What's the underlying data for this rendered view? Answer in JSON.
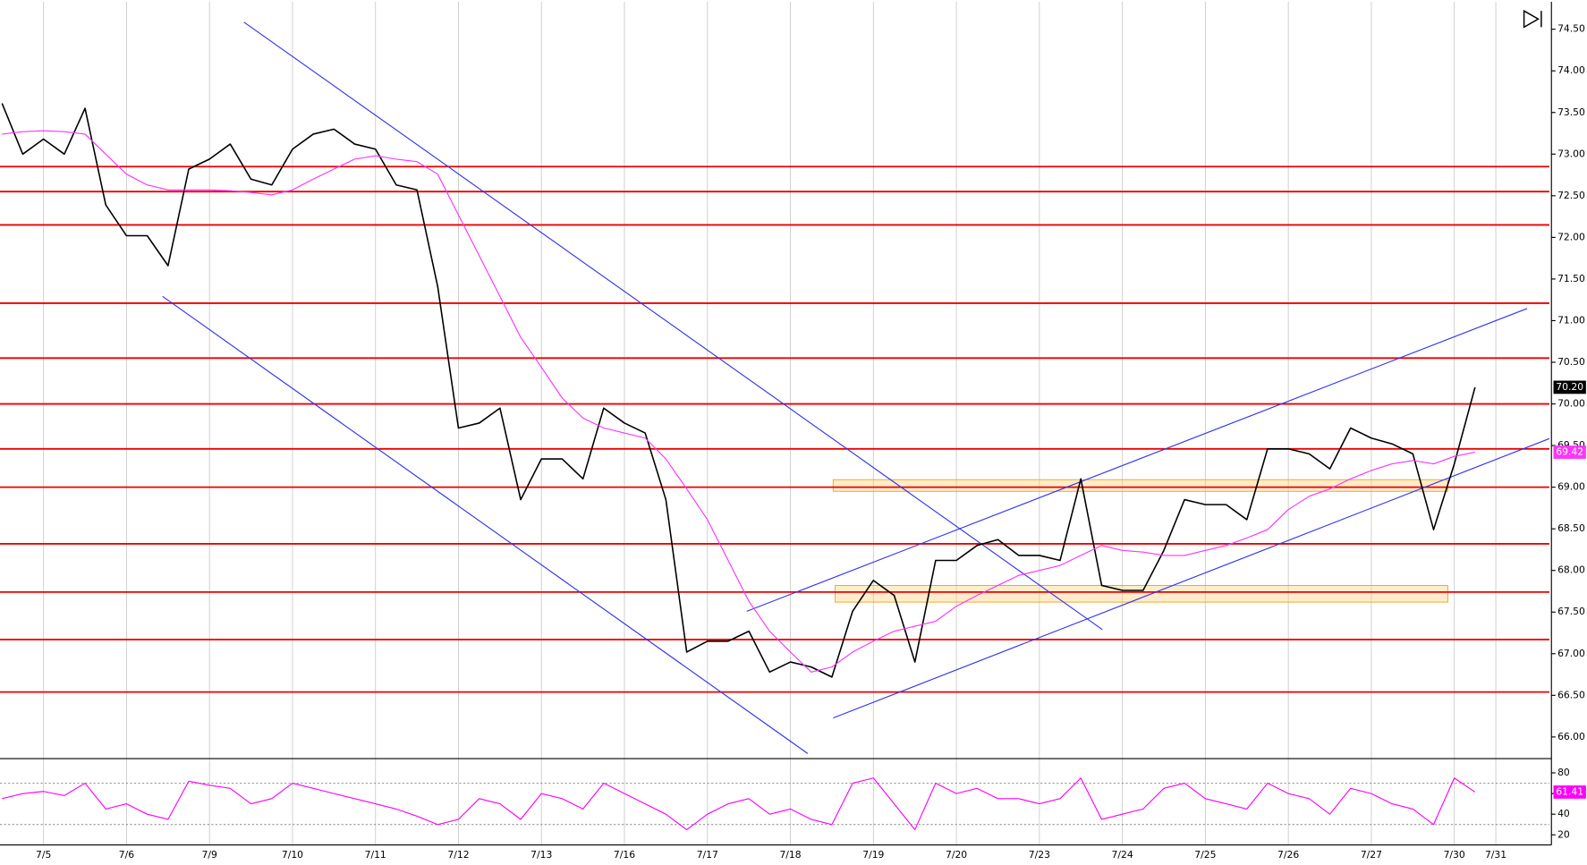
{
  "chart_data": [
    {
      "type": "line",
      "categories": [
        null,
        null,
        "7/5",
        null,
        null,
        null,
        "7/6",
        null,
        null,
        null,
        "7/9",
        null,
        null,
        null,
        "7/10",
        null,
        null,
        null,
        "7/11",
        null,
        null,
        null,
        "7/12",
        null,
        null,
        null,
        "7/13",
        null,
        null,
        null,
        "7/16",
        null,
        null,
        null,
        "7/17",
        null,
        null,
        null,
        "7/18",
        null,
        null,
        null,
        "7/19",
        null,
        null,
        null,
        "7/20",
        null,
        null,
        null,
        "7/23",
        null,
        null,
        null,
        "7/24",
        null,
        null,
        null,
        "7/25",
        null,
        null,
        null,
        "7/26",
        null,
        null,
        null,
        "7/27",
        null,
        null,
        null,
        "7/30",
        null,
        "7/31"
      ],
      "series": [
        {
          "color": "#000000",
          "values": [
            73.61,
            73.0,
            73.18,
            73.0,
            73.55,
            72.39,
            72.02,
            72.02,
            71.66,
            72.82,
            72.94,
            73.12,
            72.7,
            72.63,
            73.06,
            73.24,
            73.3,
            73.12,
            73.06,
            72.63,
            72.57,
            71.41,
            69.71,
            69.77,
            69.95,
            68.85,
            69.34,
            69.34,
            69.1,
            69.95,
            69.77,
            69.65,
            68.85,
            67.02,
            67.15,
            67.15,
            67.27,
            66.78,
            66.9,
            66.84,
            66.72,
            67.51,
            67.88,
            67.7,
            66.9,
            68.12,
            68.12,
            68.3,
            68.37,
            68.18,
            68.18,
            68.12,
            69.1,
            67.82,
            67.76,
            67.76,
            68.24,
            68.85,
            68.79,
            68.79,
            68.61,
            69.46,
            69.46,
            69.4,
            69.22,
            69.71,
            69.59,
            69.52,
            69.4,
            68.49,
            69.28,
            70.2,
            null
          ]
        },
        {
          "color": "#ff33ff",
          "values": [
            73.24,
            73.27,
            73.28,
            73.27,
            73.24,
            73.0,
            72.76,
            72.63,
            72.57,
            72.57,
            72.57,
            72.56,
            72.54,
            72.51,
            72.57,
            72.7,
            72.82,
            72.94,
            72.98,
            72.94,
            72.91,
            72.76,
            72.27,
            71.78,
            71.29,
            70.8,
            70.44,
            70.07,
            69.83,
            69.71,
            69.65,
            69.59,
            69.34,
            68.98,
            68.61,
            68.12,
            67.63,
            67.27,
            67.02,
            66.78,
            66.84,
            67.02,
            67.15,
            67.27,
            67.33,
            67.39,
            67.57,
            67.7,
            67.82,
            67.94,
            68.0,
            68.06,
            68.18,
            68.3,
            68.24,
            68.22,
            68.18,
            68.18,
            68.24,
            68.3,
            68.39,
            68.49,
            68.73,
            68.89,
            68.98,
            69.1,
            69.2,
            69.28,
            69.32,
            69.28,
            69.37,
            69.42,
            null
          ]
        }
      ],
      "ylim": [
        65.74,
        74.83
      ],
      "yticks": [
        {
          "value": 66,
          "label": "66.00"
        },
        {
          "value": 66.5,
          "label": "66.50"
        },
        {
          "value": 67,
          "label": "67.00"
        },
        {
          "value": 67.5,
          "label": "67.50"
        },
        {
          "value": 68,
          "label": "68.00"
        },
        {
          "value": 68.5,
          "label": "68.50"
        },
        {
          "value": 69,
          "label": "69.00"
        },
        {
          "value": 69.5,
          "label": "69.50"
        },
        {
          "value": 70,
          "label": "70.00"
        },
        {
          "value": 70.5,
          "label": "70.50"
        },
        {
          "value": 71,
          "label": "71.00"
        },
        {
          "value": 71.5,
          "label": "71.50"
        },
        {
          "value": 72,
          "label": "72.00"
        },
        {
          "value": 72.5,
          "label": "72.50"
        },
        {
          "value": 73,
          "label": "73.00"
        },
        {
          "value": 73.5,
          "label": "73.50"
        },
        {
          "value": 74,
          "label": "74.00"
        },
        {
          "value": 74.5,
          "label": "74.50"
        }
      ],
      "levels": {
        "color": "#ee0000",
        "values": [
          72.85,
          72.55,
          72.15,
          71.21,
          70.55,
          70.0,
          69.46,
          69.0,
          68.32,
          67.74,
          67.17,
          66.54
        ]
      },
      "zones": {
        "color": "#ffcc66",
        "ranges": [
          [
            68.95,
            69.09
          ],
          [
            67.62,
            67.82
          ]
        ]
      },
      "price_labels": [
        {
          "value": 70.2,
          "label": "70.20",
          "color": "#000000"
        },
        {
          "value": 69.42,
          "label": "69.42",
          "color": "#ff33ff"
        }
      ]
    },
    {
      "type": "line",
      "series": [
        {
          "color": "#ff00ff",
          "values": [
            55,
            60,
            62,
            58,
            70,
            45,
            50,
            40,
            35,
            72,
            68,
            65,
            50,
            55,
            70,
            65,
            60,
            55,
            50,
            45,
            38,
            30,
            35,
            55,
            50,
            35,
            60,
            55,
            45,
            70,
            60,
            50,
            40,
            25,
            40,
            50,
            55,
            40,
            45,
            35,
            30,
            70,
            75,
            50,
            25,
            70,
            60,
            65,
            55,
            55,
            50,
            55,
            75,
            35,
            40,
            45,
            65,
            70,
            55,
            50,
            45,
            70,
            60,
            55,
            40,
            65,
            60,
            50,
            45,
            30,
            75,
            61.41,
            null
          ]
        }
      ],
      "ylim": [
        10.2,
        93.8
      ],
      "yticks": [
        20,
        40,
        60,
        80
      ],
      "guides": [
        30,
        70
      ],
      "price_labels": [
        {
          "value": 61.41,
          "label": "61.41",
          "color": "#ff00ff"
        }
      ]
    }
  ]
}
